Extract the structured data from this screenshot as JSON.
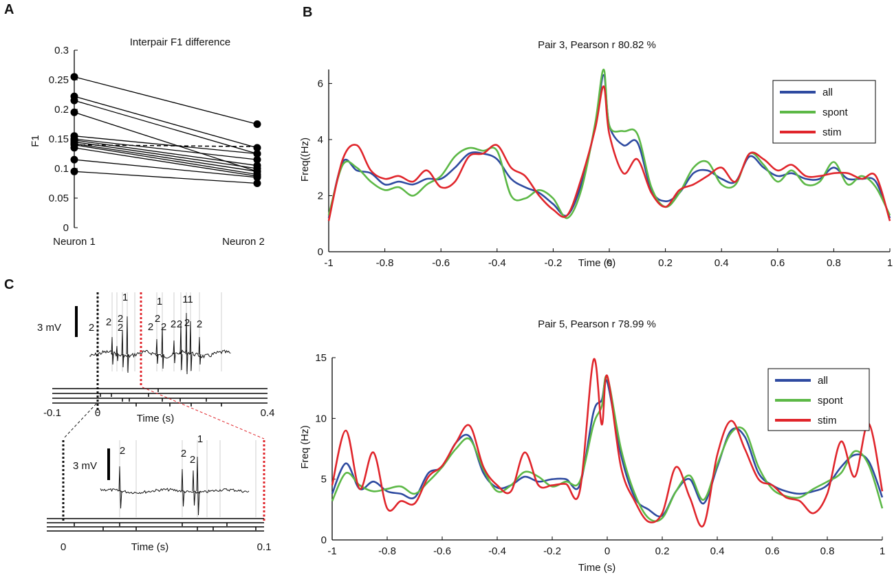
{
  "panels": {
    "a": "A",
    "b": "B",
    "c": "C"
  },
  "chart_data": [
    {
      "type": "line",
      "title": "Interpair F1 difference",
      "xlabel": "",
      "ylabel": "F1",
      "categories": [
        "Neuron 1",
        "Neuron 2"
      ],
      "ylim": [
        0,
        0.3
      ],
      "yticks": [
        "0",
        "0.05",
        "0.1",
        "0.15",
        "0.2",
        "0.25",
        "0.3"
      ],
      "pairs": [
        [
          0.255,
          0.175
        ],
        [
          0.222,
          0.135
        ],
        [
          0.215,
          0.125
        ],
        [
          0.195,
          0.095
        ],
        [
          0.155,
          0.125
        ],
        [
          0.15,
          0.115
        ],
        [
          0.148,
          0.105
        ],
        [
          0.145,
          0.1
        ],
        [
          0.142,
          0.095
        ],
        [
          0.14,
          0.09
        ],
        [
          0.135,
          0.087
        ],
        [
          0.115,
          0.085
        ],
        [
          0.095,
          0.075
        ]
      ],
      "mean": [
        0.14,
        0.137
      ]
    },
    {
      "type": "line",
      "title": "Pair 3, Pearson r 80.82 %",
      "xlabel": "Time (s)",
      "ylabel": "Freq((Hz)",
      "xlim": [
        -1,
        1
      ],
      "ylim": [
        0,
        6.5
      ],
      "xticks": [
        "-1",
        "-0.8",
        "-0.6",
        "-0.4",
        "-0.2",
        "0",
        "0.2",
        "0.4",
        "0.6",
        "0.8",
        "1"
      ],
      "yticks": [
        "0",
        "2",
        "4",
        "6"
      ],
      "x": [
        -1,
        -0.95,
        -0.9,
        -0.85,
        -0.8,
        -0.75,
        -0.7,
        -0.65,
        -0.6,
        -0.55,
        -0.5,
        -0.45,
        -0.4,
        -0.35,
        -0.3,
        -0.25,
        -0.2,
        -0.15,
        -0.1,
        -0.05,
        -0.02,
        0,
        0.05,
        0.1,
        0.15,
        0.2,
        0.25,
        0.3,
        0.35,
        0.4,
        0.45,
        0.5,
        0.55,
        0.6,
        0.65,
        0.7,
        0.75,
        0.8,
        0.85,
        0.9,
        0.95,
        1
      ],
      "series": [
        {
          "name": "all",
          "color": "#2e4aa0",
          "values": [
            1.2,
            3.2,
            2.9,
            2.8,
            2.4,
            2.5,
            2.4,
            2.6,
            2.6,
            3.0,
            3.5,
            3.5,
            3.3,
            2.6,
            2.3,
            2.1,
            1.7,
            1.3,
            2.4,
            4.5,
            6.3,
            4.5,
            3.8,
            3.9,
            2.2,
            1.8,
            2.1,
            2.8,
            2.9,
            2.6,
            2.5,
            3.4,
            3.0,
            2.7,
            2.8,
            2.6,
            2.6,
            3.0,
            2.6,
            2.6,
            2.5,
            1.2
          ]
        },
        {
          "name": "spont",
          "color": "#5cb846",
          "values": [
            1.3,
            3.1,
            3.0,
            2.5,
            2.2,
            2.3,
            2.0,
            2.4,
            2.7,
            3.4,
            3.7,
            3.6,
            3.6,
            2.0,
            1.9,
            2.2,
            1.9,
            1.2,
            2.2,
            4.6,
            6.5,
            4.5,
            4.3,
            4.2,
            2.3,
            1.6,
            2.1,
            3.0,
            3.2,
            2.4,
            2.4,
            3.5,
            3.1,
            2.5,
            2.9,
            2.4,
            2.5,
            3.2,
            2.4,
            2.7,
            2.3,
            1.3
          ]
        },
        {
          "name": "stim",
          "color": "#e0252b",
          "values": [
            1.1,
            3.3,
            3.8,
            2.9,
            2.6,
            2.7,
            2.5,
            2.9,
            2.3,
            2.5,
            3.4,
            3.5,
            3.8,
            3.0,
            2.7,
            2.0,
            1.5,
            1.3,
            2.6,
            4.4,
            5.9,
            4.2,
            2.8,
            3.3,
            2.1,
            1.6,
            2.2,
            2.4,
            2.7,
            3.0,
            2.5,
            3.5,
            3.3,
            2.9,
            3.1,
            2.7,
            2.7,
            2.8,
            2.8,
            2.6,
            2.7,
            1.1
          ]
        }
      ],
      "legend": [
        "all",
        "spont",
        "stim"
      ]
    },
    {
      "type": "line",
      "title": "Pair 5, Pearson r 78.99 %",
      "xlabel": "Time (s)",
      "ylabel": "Freq (Hz)",
      "xlim": [
        -1,
        1
      ],
      "ylim": [
        0,
        15
      ],
      "xticks": [
        "-1",
        "-0.8",
        "-0.6",
        "-0.4",
        "-0.2",
        "0",
        "0.2",
        "0.4",
        "0.6",
        "0.8",
        "1"
      ],
      "yticks": [
        "0",
        "5",
        "10",
        "15"
      ],
      "x": [
        -1,
        -0.95,
        -0.9,
        -0.85,
        -0.8,
        -0.75,
        -0.7,
        -0.65,
        -0.6,
        -0.55,
        -0.5,
        -0.45,
        -0.4,
        -0.35,
        -0.3,
        -0.25,
        -0.2,
        -0.15,
        -0.1,
        -0.05,
        -0.02,
        0,
        0.05,
        0.1,
        0.15,
        0.2,
        0.25,
        0.3,
        0.35,
        0.4,
        0.45,
        0.5,
        0.55,
        0.6,
        0.65,
        0.7,
        0.75,
        0.8,
        0.85,
        0.9,
        0.95,
        1
      ],
      "series": [
        {
          "name": "all",
          "color": "#2e4aa0",
          "values": [
            3.8,
            6.3,
            4.2,
            4.8,
            4.0,
            3.8,
            3.5,
            5.5,
            6.0,
            8.0,
            8.5,
            5.5,
            4.3,
            4.5,
            5.2,
            4.8,
            5.0,
            5.0,
            4.5,
            10.5,
            11.5,
            13.0,
            7.0,
            3.5,
            2.5,
            2.0,
            4.0,
            5.0,
            3.0,
            6.0,
            9.0,
            8.5,
            5.5,
            4.5,
            4.0,
            3.8,
            4.0,
            4.5,
            6.0,
            7.0,
            6.5,
            3.5
          ]
        },
        {
          "name": "spont",
          "color": "#5cb846",
          "values": [
            3.2,
            5.5,
            4.5,
            4.0,
            4.2,
            4.4,
            3.8,
            4.8,
            6.0,
            7.5,
            8.3,
            5.8,
            4.0,
            4.5,
            5.6,
            5.2,
            4.4,
            4.8,
            4.8,
            9.5,
            11.0,
            13.4,
            7.5,
            3.8,
            1.8,
            1.8,
            4.0,
            5.3,
            3.3,
            6.2,
            8.8,
            9.0,
            6.0,
            4.2,
            3.6,
            3.5,
            4.2,
            4.8,
            5.5,
            7.3,
            6.2,
            2.6
          ]
        },
        {
          "name": "stim",
          "color": "#e0252b",
          "values": [
            4.5,
            9.0,
            4.2,
            7.2,
            2.6,
            3.2,
            3.0,
            5.2,
            6.1,
            8.0,
            9.4,
            6.0,
            4.5,
            4.0,
            7.2,
            4.5,
            4.5,
            4.6,
            4.0,
            14.8,
            9.5,
            13.5,
            6.0,
            3.2,
            1.5,
            2.2,
            6.0,
            3.5,
            1.2,
            7.0,
            9.8,
            7.5,
            5.0,
            4.5,
            3.5,
            3.2,
            2.2,
            3.8,
            8.1,
            5.2,
            9.6,
            4.0
          ]
        }
      ],
      "legend": [
        "all",
        "spont",
        "stim"
      ]
    },
    {
      "type": "line",
      "title": "",
      "xlabel": "Time (s)",
      "ylabel": "",
      "xlim": [
        -0.1,
        0.4
      ],
      "xticks": [
        "-0.1",
        "0",
        "0.4"
      ],
      "scalebar": "3 mV",
      "spike_labels": [
        "2",
        "2",
        "2",
        "2",
        "1",
        "2",
        "2",
        "1",
        "2",
        "2",
        "2",
        "11",
        "2",
        "2"
      ]
    },
    {
      "type": "line",
      "title": "",
      "xlabel": "Time (s)",
      "ylabel": "",
      "xlim": [
        0,
        0.1
      ],
      "xticks": [
        "0",
        "0.1"
      ],
      "scalebar": "3 mV",
      "spike_labels": [
        "2",
        "2",
        "2",
        "1"
      ]
    }
  ]
}
